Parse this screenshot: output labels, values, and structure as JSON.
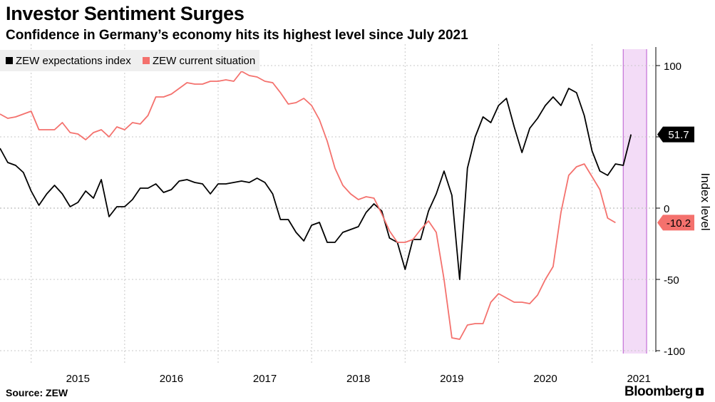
{
  "header": {
    "title": "Investor Sentiment Surges",
    "subtitle": "Confidence in Germany’s economy hits its highest level since July 2021"
  },
  "footer": {
    "source": "Source: ZEW",
    "brand": "Bloomberg"
  },
  "colors": {
    "expectations": "#000000",
    "current": "#f4716d",
    "highlight_fill": "#f3dcf7",
    "highlight_edge": "#c46fd6",
    "grid": "#c8c8c8"
  },
  "chart_data": {
    "type": "line",
    "title": "Investor Sentiment Surges",
    "subtitle": "Confidence in Germany’s economy hits its highest level since July 2021",
    "ylabel": "Index level",
    "xlabel": "",
    "ylim": [
      -110,
      115
    ],
    "y_ticks": [
      100,
      50,
      0,
      -50,
      -100
    ],
    "y_tick_labels": [
      "100",
      "50",
      "0",
      "-50",
      "-100"
    ],
    "x_start": "2014-09",
    "x_end": "2021-09",
    "x_ticks": [
      "2015",
      "2016",
      "2017",
      "2018",
      "2019",
      "2020",
      "2021"
    ],
    "grid": true,
    "legend": "top-left",
    "highlight_period": [
      "2021-05",
      "2021-08"
    ],
    "series": [
      {
        "name": "ZEW expectations index",
        "color": "#000000",
        "end_label": "51.7",
        "values": [
          [
            "2014-09",
            42
          ],
          [
            "2014-10",
            32
          ],
          [
            "2014-11",
            30
          ],
          [
            "2014-12",
            25
          ],
          [
            "2015-01",
            12
          ],
          [
            "2015-02",
            2
          ],
          [
            "2015-03",
            10
          ],
          [
            "2015-04",
            16
          ],
          [
            "2015-05",
            10
          ],
          [
            "2015-06",
            1
          ],
          [
            "2015-07",
            4
          ],
          [
            "2015-08",
            12
          ],
          [
            "2015-09",
            7
          ],
          [
            "2015-10",
            20
          ],
          [
            "2015-11",
            -6
          ],
          [
            "2015-12",
            1
          ],
          [
            "2016-01",
            1
          ],
          [
            "2016-02",
            6
          ],
          [
            "2016-03",
            14
          ],
          [
            "2016-04",
            14
          ],
          [
            "2016-05",
            17
          ],
          [
            "2016-06",
            11
          ],
          [
            "2016-07",
            13
          ],
          [
            "2016-08",
            19
          ],
          [
            "2016-09",
            20
          ],
          [
            "2016-10",
            18
          ],
          [
            "2016-11",
            17
          ],
          [
            "2016-12",
            10
          ],
          [
            "2017-01",
            17
          ],
          [
            "2017-02",
            17
          ],
          [
            "2017-03",
            18
          ],
          [
            "2017-04",
            19
          ],
          [
            "2017-05",
            18
          ],
          [
            "2017-06",
            21
          ],
          [
            "2017-07",
            18
          ],
          [
            "2017-08",
            10
          ],
          [
            "2017-09",
            -8
          ],
          [
            "2017-10",
            -8
          ],
          [
            "2017-11",
            -17
          ],
          [
            "2017-12",
            -23
          ],
          [
            "2018-01",
            -12
          ],
          [
            "2018-02",
            -10
          ],
          [
            "2018-03",
            -24
          ],
          [
            "2018-04",
            -24
          ],
          [
            "2018-05",
            -17
          ],
          [
            "2018-06",
            -15
          ],
          [
            "2018-07",
            -13
          ],
          [
            "2018-08",
            -3
          ],
          [
            "2018-09",
            3
          ],
          [
            "2018-10",
            -2
          ],
          [
            "2018-11",
            -21
          ],
          [
            "2018-12",
            -24
          ],
          [
            "2019-01",
            -43
          ],
          [
            "2019-02",
            -22
          ],
          [
            "2019-03",
            -22
          ],
          [
            "2019-04",
            -2
          ],
          [
            "2019-05",
            10
          ],
          [
            "2019-06",
            26
          ],
          [
            "2019-07",
            9
          ],
          [
            "2019-08",
            -50
          ],
          [
            "2019-09",
            28
          ],
          [
            "2019-10",
            50
          ],
          [
            "2019-11",
            64
          ],
          [
            "2019-12",
            60
          ],
          [
            "2020-01",
            72
          ],
          [
            "2020-02",
            77
          ],
          [
            "2020-03",
            57
          ],
          [
            "2020-04",
            39
          ],
          [
            "2020-05",
            56
          ],
          [
            "2020-06",
            63
          ],
          [
            "2020-07",
            72
          ],
          [
            "2020-08",
            78
          ],
          [
            "2020-09",
            72
          ],
          [
            "2020-10",
            84
          ],
          [
            "2020-11",
            81
          ],
          [
            "2020-12",
            65
          ],
          [
            "2021-01",
            40
          ],
          [
            "2021-02",
            26
          ],
          [
            "2021-03",
            23
          ],
          [
            "2021-04",
            31
          ],
          [
            "2021-05",
            30
          ],
          [
            "2021-06",
            51.7
          ]
        ]
      },
      {
        "name": "ZEW current situation",
        "color": "#f4716d",
        "end_label": "-10.2",
        "values": [
          [
            "2014-09",
            66
          ],
          [
            "2014-10",
            63
          ],
          [
            "2014-11",
            64
          ],
          [
            "2014-12",
            66
          ],
          [
            "2015-01",
            68
          ],
          [
            "2015-02",
            55
          ],
          [
            "2015-03",
            55
          ],
          [
            "2015-04",
            55
          ],
          [
            "2015-05",
            60
          ],
          [
            "2015-06",
            53
          ],
          [
            "2015-07",
            52
          ],
          [
            "2015-08",
            48
          ],
          [
            "2015-09",
            53
          ],
          [
            "2015-10",
            55
          ],
          [
            "2015-11",
            50
          ],
          [
            "2015-12",
            57
          ],
          [
            "2016-01",
            55
          ],
          [
            "2016-02",
            60
          ],
          [
            "2016-03",
            59
          ],
          [
            "2016-04",
            65
          ],
          [
            "2016-05",
            78
          ],
          [
            "2016-06",
            78
          ],
          [
            "2016-07",
            80
          ],
          [
            "2016-08",
            84
          ],
          [
            "2016-09",
            88
          ],
          [
            "2016-10",
            87
          ],
          [
            "2016-11",
            87
          ],
          [
            "2016-12",
            89
          ],
          [
            "2017-01",
            89
          ],
          [
            "2017-02",
            90
          ],
          [
            "2017-03",
            89
          ],
          [
            "2017-04",
            96
          ],
          [
            "2017-05",
            93
          ],
          [
            "2017-06",
            92
          ],
          [
            "2017-07",
            89
          ],
          [
            "2017-08",
            88
          ],
          [
            "2017-09",
            81
          ],
          [
            "2017-10",
            73
          ],
          [
            "2017-11",
            74
          ],
          [
            "2017-12",
            77
          ],
          [
            "2018-01",
            72
          ],
          [
            "2018-02",
            62
          ],
          [
            "2018-03",
            47
          ],
          [
            "2018-04",
            28
          ],
          [
            "2018-05",
            16
          ],
          [
            "2018-06",
            10
          ],
          [
            "2018-07",
            6
          ],
          [
            "2018-08",
            8
          ],
          [
            "2018-09",
            7
          ],
          [
            "2018-10",
            -4
          ],
          [
            "2018-11",
            -16
          ],
          [
            "2018-12",
            -24
          ],
          [
            "2019-01",
            -24
          ],
          [
            "2019-02",
            -22
          ],
          [
            "2019-03",
            -15
          ],
          [
            "2019-04",
            -9
          ],
          [
            "2019-05",
            -17
          ],
          [
            "2019-06",
            -50
          ],
          [
            "2019-07",
            -91
          ],
          [
            "2019-08",
            -92
          ],
          [
            "2019-09",
            -82
          ],
          [
            "2019-10",
            -81
          ],
          [
            "2019-11",
            -81
          ],
          [
            "2019-12",
            -66
          ],
          [
            "2020-01",
            -60
          ],
          [
            "2020-02",
            -63
          ],
          [
            "2020-03",
            -66
          ],
          [
            "2020-04",
            -66
          ],
          [
            "2020-05",
            -67
          ],
          [
            "2020-06",
            -61
          ],
          [
            "2020-07",
            -50
          ],
          [
            "2020-08",
            -41
          ],
          [
            "2020-09",
            -3
          ],
          [
            "2020-10",
            23
          ],
          [
            "2020-11",
            29
          ],
          [
            "2020-12",
            31
          ],
          [
            "2021-01",
            22
          ],
          [
            "2021-02",
            13
          ],
          [
            "2021-03",
            -7
          ],
          [
            "2021-04",
            -10.2
          ]
        ]
      }
    ]
  }
}
